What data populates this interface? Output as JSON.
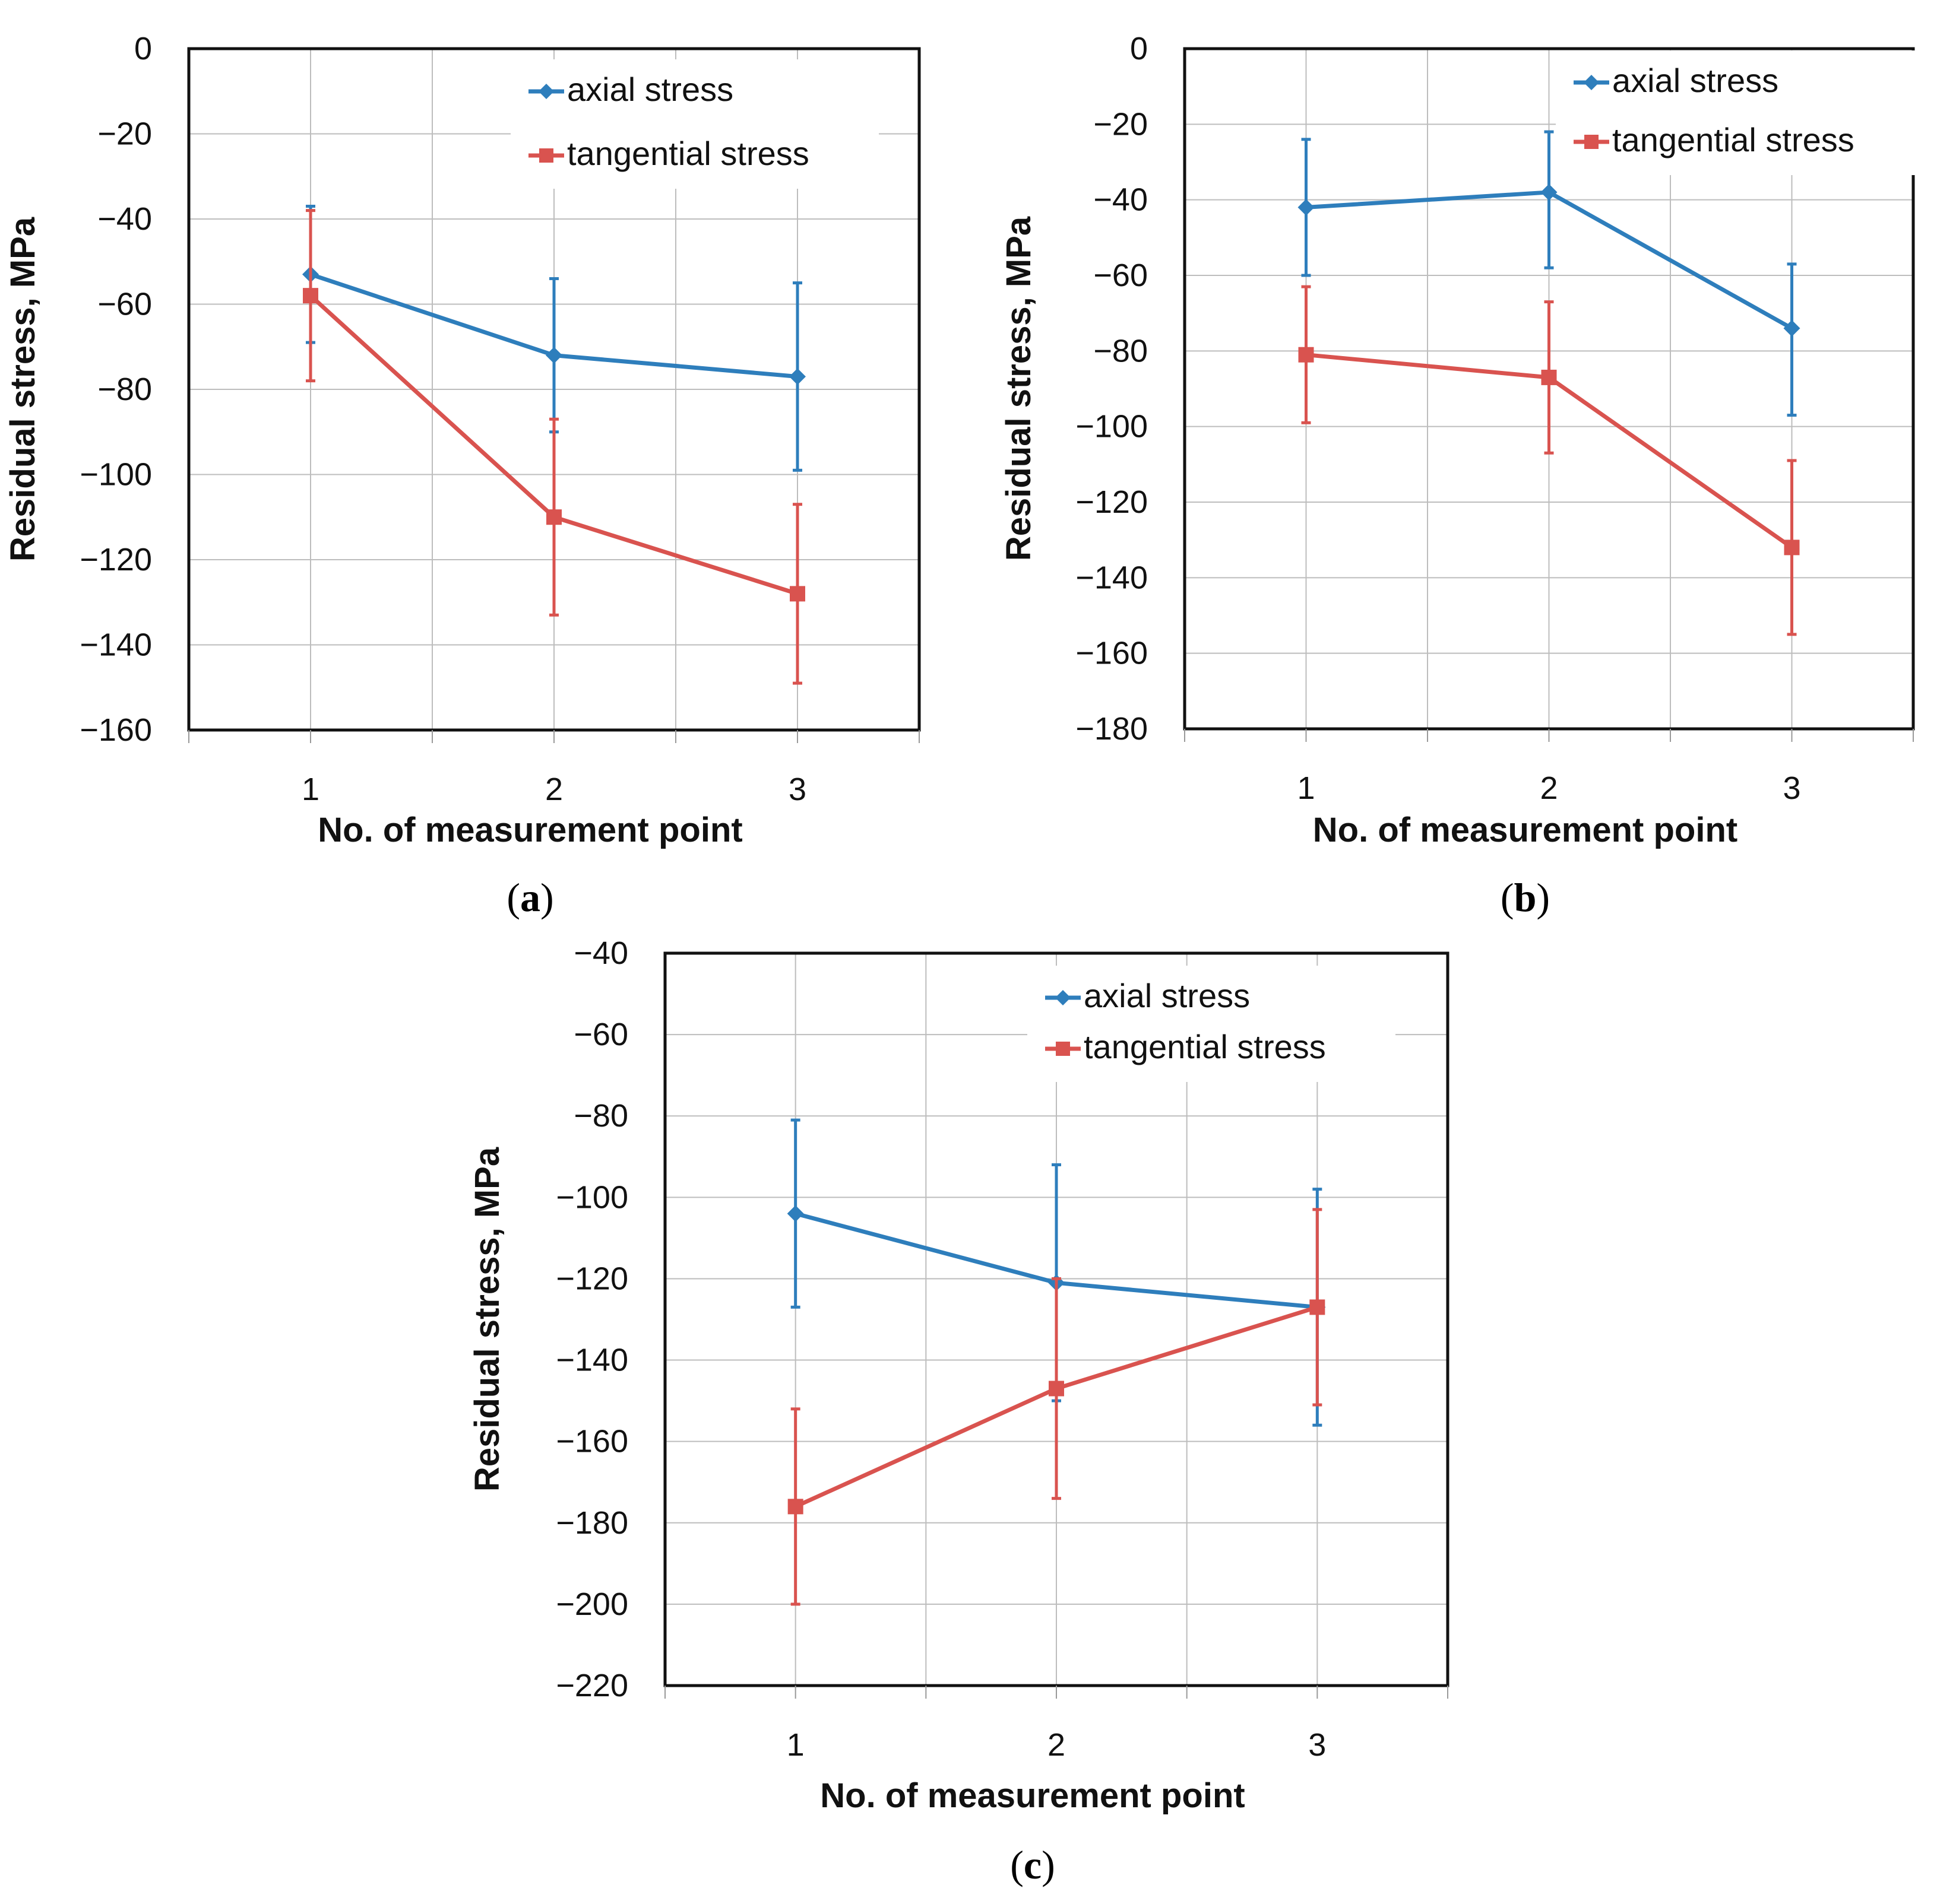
{
  "chart_data": [
    {
      "type": "line",
      "panel_label": "a",
      "xlabel": "No. of measurement point",
      "ylabel": "Residual stress, MPa",
      "categories": [
        "1",
        "2",
        "3"
      ],
      "ylim": [
        -160,
        0
      ],
      "yticks": [
        "0",
        "−20",
        "−40",
        "−60",
        "−80",
        "−100",
        "−120",
        "−140",
        "−160"
      ],
      "grid": true,
      "legend_position": "top-right",
      "series": [
        {
          "name": "axial stress",
          "color": "#2e7ebc",
          "marker": "diamond",
          "values": [
            -53,
            -72,
            -77
          ],
          "err_low": [
            -69,
            -90,
            -99
          ],
          "err_high": [
            -37,
            -54,
            -55
          ]
        },
        {
          "name": "tangential stress",
          "color": "#d9534f",
          "marker": "square",
          "values": [
            -58,
            -110,
            -128
          ],
          "err_low": [
            -78,
            -133,
            -149
          ],
          "err_high": [
            -38,
            -87,
            -107
          ]
        }
      ]
    },
    {
      "type": "line",
      "panel_label": "b",
      "xlabel": "No. of measurement point",
      "ylabel": "Residual stress, MPa",
      "categories": [
        "1",
        "2",
        "3"
      ],
      "ylim": [
        -180,
        0
      ],
      "yticks": [
        "0",
        "−20",
        "−40",
        "−60",
        "−80",
        "−100",
        "−120",
        "−140",
        "−160",
        "−180"
      ],
      "grid": true,
      "legend_position": "top-right",
      "series": [
        {
          "name": "axial stress",
          "color": "#2e7ebc",
          "marker": "diamond",
          "values": [
            -42,
            -38,
            -74
          ],
          "err_low": [
            -60,
            -58,
            -97
          ],
          "err_high": [
            -24,
            -22,
            -57
          ]
        },
        {
          "name": "tangential stress",
          "color": "#d9534f",
          "marker": "square",
          "values": [
            -81,
            -87,
            -132
          ],
          "err_low": [
            -99,
            -107,
            -155
          ],
          "err_high": [
            -63,
            -67,
            -109
          ]
        }
      ]
    },
    {
      "type": "line",
      "panel_label": "c",
      "xlabel": "No. of measurement point",
      "ylabel": "Residual stress, MPa",
      "categories": [
        "1",
        "2",
        "3"
      ],
      "ylim": [
        -220,
        -40
      ],
      "yticks": [
        "−40",
        "−60",
        "−80",
        "−100",
        "−120",
        "−140",
        "−160",
        "−180",
        "−200",
        "−220"
      ],
      "grid": true,
      "legend_position": "top-right",
      "series": [
        {
          "name": "axial stress",
          "color": "#2e7ebc",
          "marker": "diamond",
          "values": [
            -104,
            -121,
            -127
          ],
          "err_low": [
            -127,
            -150,
            -156
          ],
          "err_high": [
            -81,
            -92,
            -98
          ]
        },
        {
          "name": "tangential stress",
          "color": "#d9534f",
          "marker": "square",
          "values": [
            -176,
            -147,
            -127
          ],
          "err_low": [
            -200,
            -174,
            -151
          ],
          "err_high": [
            -152,
            -120,
            -103
          ]
        }
      ]
    }
  ]
}
